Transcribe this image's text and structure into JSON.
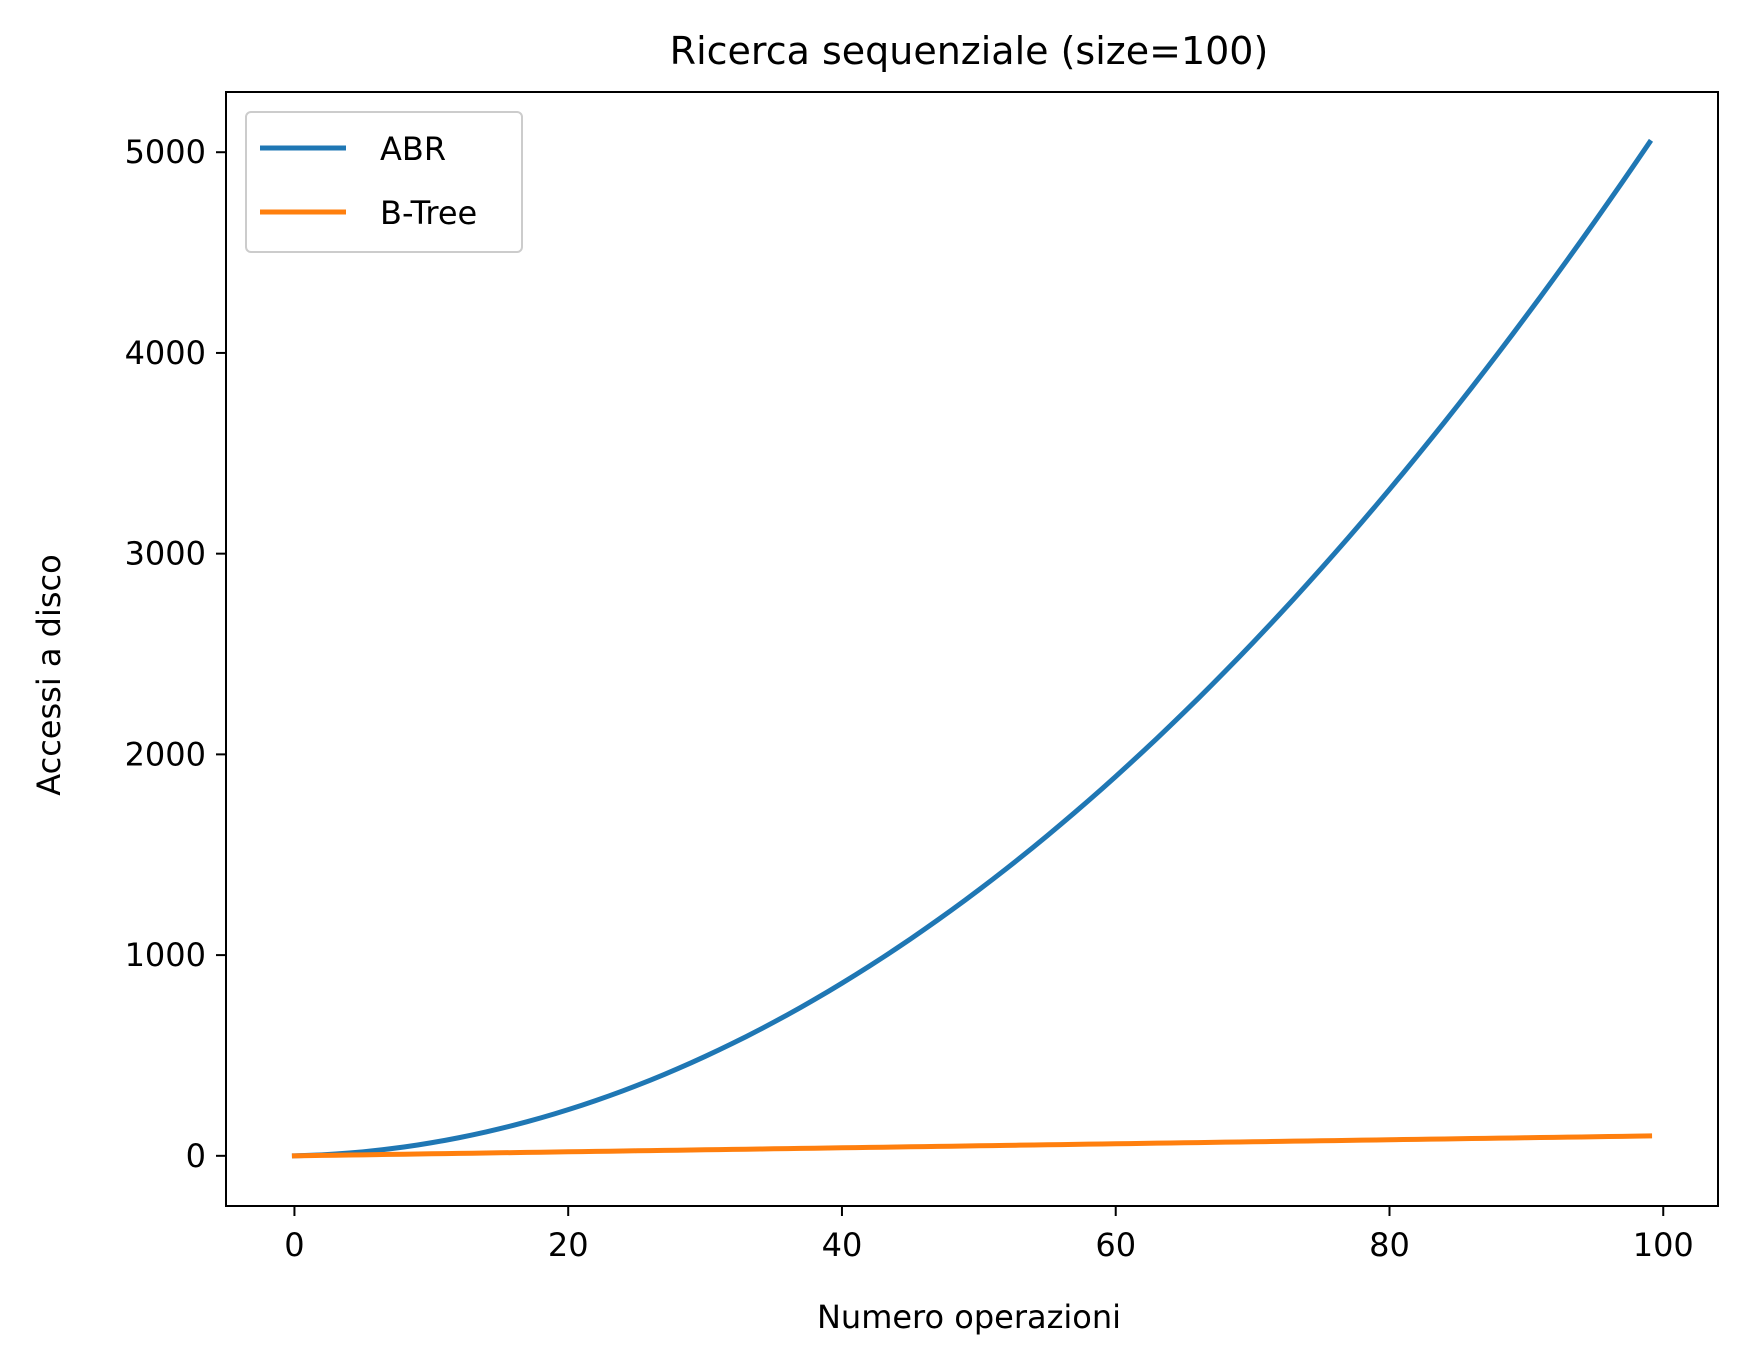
{
  "chart_data": {
    "type": "line",
    "title": "Ricerca sequenziale (size=100)",
    "xlabel": "Numero operazioni",
    "ylabel": "Accessi a disco",
    "xlim": [
      -5,
      104
    ],
    "ylim": [
      -250,
      5300
    ],
    "xticks": [
      0,
      20,
      40,
      60,
      80,
      100
    ],
    "yticks": [
      0,
      1000,
      2000,
      3000,
      4000,
      5000
    ],
    "xtick_labels": [
      "0",
      "20",
      "40",
      "60",
      "80",
      "100"
    ],
    "ytick_labels": [
      "0",
      "1000",
      "2000",
      "3000",
      "4000",
      "5000"
    ],
    "grid": false,
    "legend_position": "upper-left",
    "series": [
      {
        "name": "ABR",
        "color": "#1f77b4",
        "formula_note": "values follow n(n+1)/2 + n",
        "x_start": 0,
        "x_end": 99
      },
      {
        "name": "B-Tree",
        "color": "#ff7f0e",
        "x_start": 0,
        "x_end": 99
      }
    ]
  }
}
